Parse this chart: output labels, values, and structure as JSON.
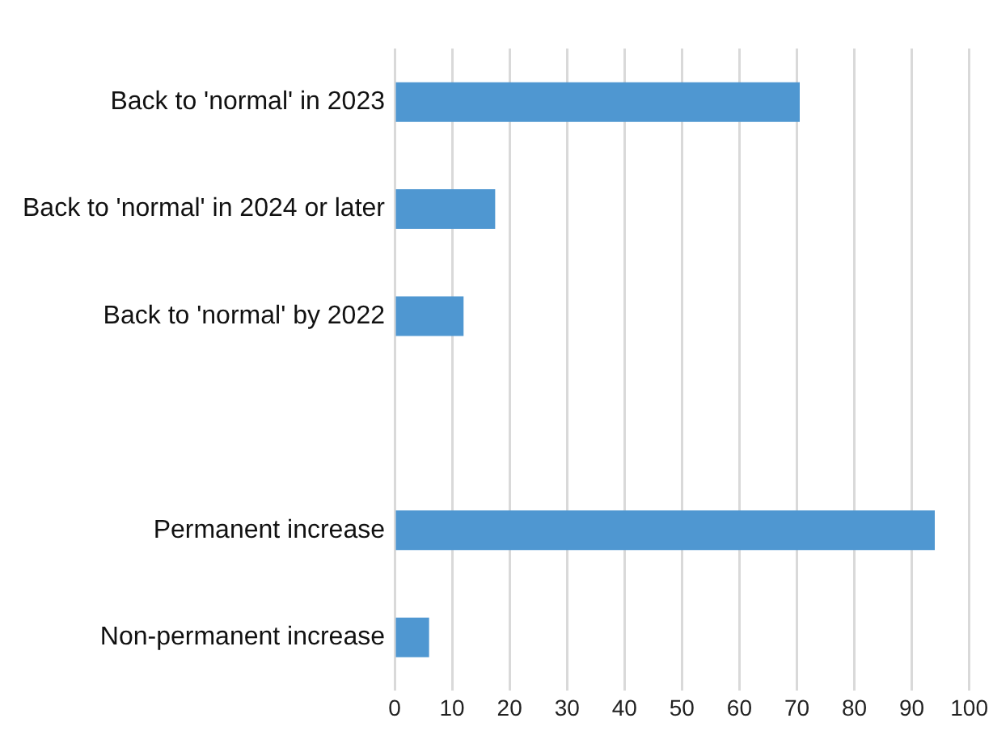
{
  "chart_data": {
    "type": "bar",
    "orientation": "horizontal",
    "categories": [
      "Back to 'normal' in 2023",
      "Back to 'normal' in 2024 or later",
      "Back to 'normal' by 2022",
      null,
      "Permanent increase",
      "Non-permanent increase"
    ],
    "values": [
      70.5,
      17.5,
      12,
      null,
      94,
      6
    ],
    "color": "#4f97d1",
    "xlim": [
      0,
      100
    ],
    "xticks": [
      0,
      10,
      20,
      30,
      40,
      50,
      60,
      70,
      80,
      90,
      100
    ],
    "grid": "x"
  }
}
